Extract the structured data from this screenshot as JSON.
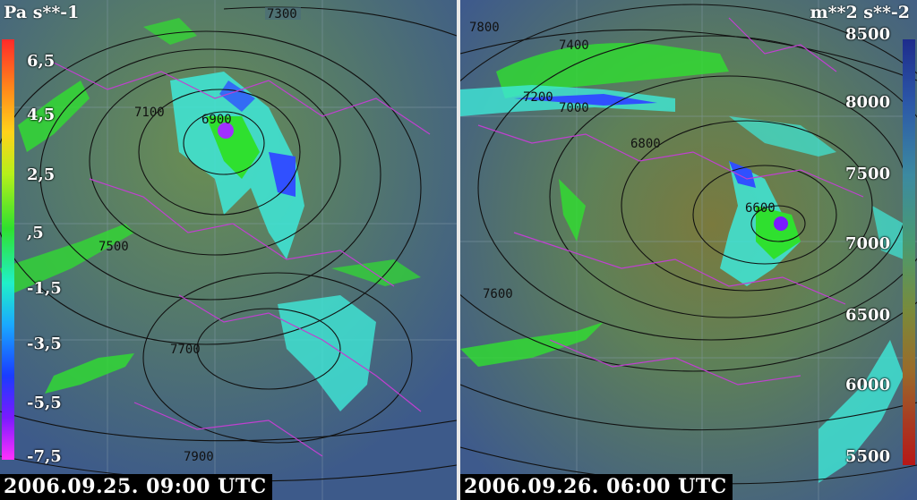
{
  "left_panel": {
    "unit_label": "Pa s**-1",
    "timestamp": "2006.09.25. 09:00 UTC",
    "colorbar_ticks": [
      "6,5",
      "4,5",
      "2,5",
      ",5",
      "-1,5",
      "-3,5",
      "-5,5",
      "-7,5"
    ],
    "contour_labels": [
      "7300",
      "7100",
      "6900",
      "7500",
      "7700",
      "7900"
    ]
  },
  "right_panel": {
    "unit_label": "m**2 s**-2",
    "timestamp": "2006.09.26. 06:00 UTC",
    "colorbar_ticks": [
      "8500",
      "8000",
      "7500",
      "7000",
      "6500",
      "6000",
      "5500"
    ],
    "contour_labels": [
      "7800",
      "7400",
      "7200",
      "7000",
      "6800",
      "6600",
      "7600"
    ]
  },
  "colors": {
    "background_blue": "#3e5f8e",
    "low_center_green": "#6b8a4e",
    "contour_line": "#111111",
    "border_line": "#c040d0",
    "shade_green": "#39d93c",
    "shade_cyan": "#3ee8d8",
    "shade_blue": "#3050ff"
  }
}
